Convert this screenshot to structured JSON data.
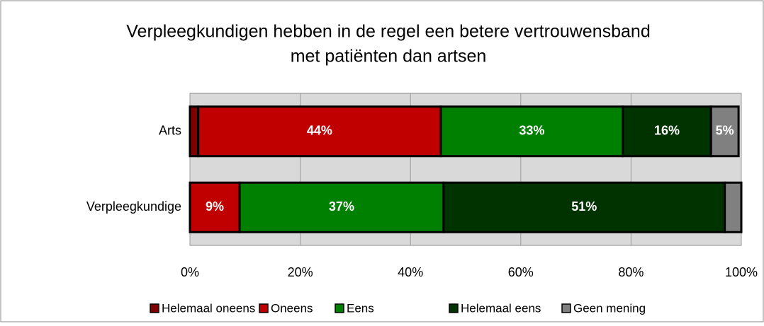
{
  "chart_data": {
    "type": "stacked_barh",
    "title": [
      "Verpleegkundigen hebben in de regel een betere vertrouwensband",
      "met patiënten dan artsen"
    ],
    "categories": [
      "Arts",
      "Verpleegkundige"
    ],
    "series": [
      {
        "name": "Helemaal oneens",
        "color": "#7f0000",
        "values": [
          1.5,
          0
        ],
        "value_labels": [
          null,
          null
        ]
      },
      {
        "name": "Oneens",
        "color": "#c00000",
        "values": [
          44,
          9
        ],
        "value_labels": [
          "44%",
          "9%"
        ]
      },
      {
        "name": "Eens",
        "color": "#008000",
        "values": [
          33,
          37
        ],
        "value_labels": [
          "33%",
          "37%"
        ]
      },
      {
        "name": "Helemaal eens",
        "color": "#003300",
        "values": [
          16,
          51
        ],
        "value_labels": [
          "16%",
          "51%"
        ]
      },
      {
        "name": "Geen mening",
        "color": "#808080",
        "values": [
          5,
          3
        ],
        "value_labels": [
          "5%",
          null
        ]
      }
    ],
    "xlim": [
      0,
      100
    ],
    "xticks": [
      {
        "value": 0,
        "label": "0%"
      },
      {
        "value": 20,
        "label": "20%"
      },
      {
        "value": 40,
        "label": "40%"
      },
      {
        "value": 60,
        "label": "60%"
      },
      {
        "value": 80,
        "label": "80%"
      },
      {
        "value": 100,
        "label": "100%"
      }
    ],
    "grid": true,
    "legend": "bottom"
  }
}
